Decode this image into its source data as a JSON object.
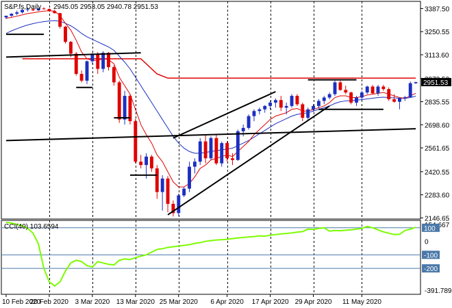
{
  "chart_data": [
    {
      "type": "candlestick",
      "header": {
        "symbol": "S&P.fs,Daily",
        "ohlc": "2945.05 2953.05 2940.78 2951.53"
      },
      "current_price": 2951.53,
      "current_price_label": "2951.53",
      "ylim": [
        2140,
        3430
      ],
      "y_ticks": [
        3387.5,
        3250.55,
        3113.6,
        2972.5,
        2835.55,
        2698.6,
        2561.65,
        2420.55,
        2283.6,
        2146.65
      ],
      "y_tick_labels": [
        "3387.50",
        "3250.55",
        "3113.60",
        "2972.50",
        "2835.55",
        "2698.60",
        "2561.65",
        "2420.55",
        "2283.60",
        "2146.65"
      ],
      "colors": {
        "up": "#1c2fc0",
        "down": "#e00000",
        "ma_fast": "#e00000",
        "ma_slow": "#1c2fc0",
        "trend": "#000000",
        "resistance": "#e00000"
      },
      "candles": [
        {
          "o": 3335,
          "h": 3345,
          "l": 3325,
          "c": 3345
        },
        {
          "o": 3345,
          "h": 3360,
          "l": 3338,
          "c": 3357
        },
        {
          "o": 3357,
          "h": 3375,
          "l": 3348,
          "c": 3365
        },
        {
          "o": 3365,
          "h": 3385,
          "l": 3358,
          "c": 3380
        },
        {
          "o": 3380,
          "h": 3393,
          "l": 3370,
          "c": 3383
        },
        {
          "o": 3383,
          "h": 3390,
          "l": 3372,
          "c": 3377
        },
        {
          "o": 3377,
          "h": 3392,
          "l": 3374,
          "c": 3388
        },
        {
          "o": 3388,
          "h": 3395,
          "l": 3381,
          "c": 3385
        },
        {
          "o": 3385,
          "h": 3388,
          "l": 3370,
          "c": 3372
        },
        {
          "o": 3372,
          "h": 3381,
          "l": 3358,
          "c": 3360
        },
        {
          "o": 3360,
          "h": 3362,
          "l": 3270,
          "c": 3280
        },
        {
          "o": 3280,
          "h": 3285,
          "l": 3180,
          "c": 3190
        },
        {
          "o": 3190,
          "h": 3195,
          "l": 3100,
          "c": 3120
        },
        {
          "o": 3120,
          "h": 3130,
          "l": 2990,
          "c": 3000
        },
        {
          "o": 3000,
          "h": 3020,
          "l": 2950,
          "c": 2960
        },
        {
          "o": 2960,
          "h": 3080,
          "l": 2940,
          "c": 3075
        },
        {
          "o": 3075,
          "h": 3125,
          "l": 3060,
          "c": 3115
        },
        {
          "o": 3115,
          "h": 3130,
          "l": 3000,
          "c": 3030
        },
        {
          "o": 3030,
          "h": 3135,
          "l": 3010,
          "c": 3125
        },
        {
          "o": 3125,
          "h": 3130,
          "l": 3020,
          "c": 3040
        },
        {
          "o": 3040,
          "h": 3050,
          "l": 2930,
          "c": 2950
        },
        {
          "o": 2950,
          "h": 2960,
          "l": 2710,
          "c": 2730
        },
        {
          "o": 2730,
          "h": 2900,
          "l": 2700,
          "c": 2870
        },
        {
          "o": 2870,
          "h": 2880,
          "l": 2700,
          "c": 2720
        },
        {
          "o": 2720,
          "h": 2735,
          "l": 2470,
          "c": 2480
        },
        {
          "o": 2480,
          "h": 2520,
          "l": 2440,
          "c": 2460
        },
        {
          "o": 2460,
          "h": 2530,
          "l": 2380,
          "c": 2510
        },
        {
          "o": 2510,
          "h": 2520,
          "l": 2420,
          "c": 2440
        },
        {
          "o": 2440,
          "h": 2460,
          "l": 2260,
          "c": 2300
        },
        {
          "o": 2300,
          "h": 2400,
          "l": 2190,
          "c": 2380
        },
        {
          "o": 2380,
          "h": 2395,
          "l": 2180,
          "c": 2230
        },
        {
          "o": 2230,
          "h": 2250,
          "l": 2155,
          "c": 2175
        },
        {
          "o": 2175,
          "h": 2290,
          "l": 2160,
          "c": 2280
        },
        {
          "o": 2280,
          "h": 2330,
          "l": 2270,
          "c": 2320
        },
        {
          "o": 2320,
          "h": 2480,
          "l": 2300,
          "c": 2450
        },
        {
          "o": 2450,
          "h": 2500,
          "l": 2410,
          "c": 2480
        },
        {
          "o": 2480,
          "h": 2620,
          "l": 2460,
          "c": 2600
        },
        {
          "o": 2600,
          "h": 2640,
          "l": 2470,
          "c": 2500
        },
        {
          "o": 2500,
          "h": 2630,
          "l": 2490,
          "c": 2620
        },
        {
          "o": 2620,
          "h": 2640,
          "l": 2460,
          "c": 2470
        },
        {
          "o": 2470,
          "h": 2600,
          "l": 2450,
          "c": 2590
        },
        {
          "o": 2590,
          "h": 2600,
          "l": 2480,
          "c": 2500
        },
        {
          "o": 2500,
          "h": 2530,
          "l": 2460,
          "c": 2490
        },
        {
          "o": 2490,
          "h": 2670,
          "l": 2485,
          "c": 2660
        },
        {
          "o": 2660,
          "h": 2700,
          "l": 2630,
          "c": 2680
        },
        {
          "o": 2680,
          "h": 2760,
          "l": 2670,
          "c": 2750
        },
        {
          "o": 2750,
          "h": 2790,
          "l": 2720,
          "c": 2780
        },
        {
          "o": 2780,
          "h": 2800,
          "l": 2760,
          "c": 2790
        },
        {
          "o": 2790,
          "h": 2815,
          "l": 2770,
          "c": 2810
        },
        {
          "o": 2810,
          "h": 2840,
          "l": 2790,
          "c": 2830
        },
        {
          "o": 2830,
          "h": 2855,
          "l": 2800,
          "c": 2845
        },
        {
          "o": 2845,
          "h": 2870,
          "l": 2780,
          "c": 2800
        },
        {
          "o": 2800,
          "h": 2830,
          "l": 2760,
          "c": 2810
        },
        {
          "o": 2810,
          "h": 2880,
          "l": 2800,
          "c": 2870
        },
        {
          "o": 2870,
          "h": 2880,
          "l": 2810,
          "c": 2820
        },
        {
          "o": 2820,
          "h": 2830,
          "l": 2720,
          "c": 2740
        },
        {
          "o": 2740,
          "h": 2800,
          "l": 2730,
          "c": 2790
        },
        {
          "o": 2790,
          "h": 2820,
          "l": 2775,
          "c": 2810
        },
        {
          "o": 2810,
          "h": 2850,
          "l": 2795,
          "c": 2840
        },
        {
          "o": 2840,
          "h": 2870,
          "l": 2820,
          "c": 2860
        },
        {
          "o": 2860,
          "h": 2890,
          "l": 2850,
          "c": 2880
        },
        {
          "o": 2880,
          "h": 2960,
          "l": 2870,
          "c": 2950
        },
        {
          "o": 2950,
          "h": 2960,
          "l": 2900,
          "c": 2905
        },
        {
          "o": 2905,
          "h": 2930,
          "l": 2880,
          "c": 2890
        },
        {
          "o": 2890,
          "h": 2895,
          "l": 2820,
          "c": 2830
        },
        {
          "o": 2830,
          "h": 2870,
          "l": 2810,
          "c": 2860
        },
        {
          "o": 2860,
          "h": 2900,
          "l": 2850,
          "c": 2890
        },
        {
          "o": 2890,
          "h": 2930,
          "l": 2880,
          "c": 2925
        },
        {
          "o": 2925,
          "h": 2935,
          "l": 2880,
          "c": 2885
        },
        {
          "o": 2885,
          "h": 2935,
          "l": 2870,
          "c": 2925
        },
        {
          "o": 2925,
          "h": 2935,
          "l": 2900,
          "c": 2910
        },
        {
          "o": 2910,
          "h": 2920,
          "l": 2840,
          "c": 2850
        },
        {
          "o": 2850,
          "h": 2880,
          "l": 2830,
          "c": 2835
        },
        {
          "o": 2835,
          "h": 2860,
          "l": 2790,
          "c": 2855
        },
        {
          "o": 2855,
          "h": 2870,
          "l": 2840,
          "c": 2862
        },
        {
          "o": 2862,
          "h": 2955,
          "l": 2860,
          "c": 2945
        },
        {
          "o": 2945,
          "h": 2953.05,
          "l": 2940.78,
          "c": 2951.53
        }
      ],
      "ma_fast": [
        3330,
        3335,
        3342,
        3350,
        3358,
        3362,
        3368,
        3372,
        3374,
        3372,
        3345,
        3300,
        3260,
        3200,
        3130,
        3090,
        3080,
        3080,
        3090,
        3085,
        3060,
        2980,
        2930,
        2880,
        2790,
        2700,
        2640,
        2590,
        2520,
        2480,
        2420,
        2360,
        2330,
        2330,
        2350,
        2390,
        2440,
        2460,
        2490,
        2500,
        2510,
        2520,
        2510,
        2540,
        2570,
        2600,
        2640,
        2670,
        2700,
        2730,
        2750,
        2760,
        2770,
        2790,
        2795,
        2780,
        2780,
        2790,
        2800,
        2810,
        2830,
        2860,
        2870,
        2870,
        2860,
        2860,
        2865,
        2875,
        2880,
        2885,
        2890,
        2880,
        2870,
        2860,
        2855,
        2870,
        2885
      ],
      "ma_slow": [
        3240,
        3255,
        3268,
        3280,
        3290,
        3298,
        3305,
        3310,
        3314,
        3316,
        3312,
        3300,
        3285,
        3265,
        3240,
        3220,
        3205,
        3190,
        3175,
        3160,
        3140,
        3105,
        3070,
        3030,
        2980,
        2930,
        2880,
        2830,
        2780,
        2730,
        2680,
        2630,
        2590,
        2560,
        2540,
        2530,
        2530,
        2535,
        2540,
        2545,
        2550,
        2555,
        2560,
        2575,
        2590,
        2605,
        2625,
        2645,
        2665,
        2685,
        2705,
        2720,
        2735,
        2750,
        2760,
        2765,
        2770,
        2780,
        2790,
        2800,
        2810,
        2825,
        2835,
        2840,
        2842,
        2845,
        2848,
        2852,
        2856,
        2860,
        2862,
        2860,
        2858,
        2856,
        2855,
        2860,
        2868
      ],
      "trendlines": [
        {
          "x1": 0,
          "y1": 3235,
          "x2": 7,
          "y2": 3235
        },
        {
          "x1": 0,
          "y1": 3100,
          "x2": 25,
          "y2": 3125
        },
        {
          "x1": 13,
          "y1": 2920,
          "x2": 16,
          "y2": 2920
        },
        {
          "x1": 20,
          "y1": 2740,
          "x2": 23,
          "y2": 2740
        },
        {
          "x1": 23,
          "y1": 2400,
          "x2": 28,
          "y2": 2400
        },
        {
          "x1": 0,
          "y1": 2605,
          "x2": 76,
          "y2": 2675
        },
        {
          "x1": 30,
          "y1": 2165,
          "x2": 60,
          "y2": 2810
        },
        {
          "x1": 31,
          "y1": 2620,
          "x2": 50,
          "y2": 2895
        },
        {
          "x1": 56,
          "y1": 2965,
          "x2": 65,
          "y2": 2965
        },
        {
          "x1": 58,
          "y1": 2790,
          "x2": 70,
          "y2": 2790
        }
      ],
      "resistance": [
        {
          "x": 3,
          "y": 3090
        },
        {
          "x": 25,
          "y": 3090
        },
        {
          "x": 28,
          "y": 3000
        },
        {
          "x": 30,
          "y": 2975
        },
        {
          "x": 76,
          "y": 2975
        }
      ],
      "x_labels": [
        {
          "i": 0,
          "label": "10 Feb 2020"
        },
        {
          "i": 8,
          "label": "20 Feb 2020"
        },
        {
          "i": 16,
          "label": "3 Mar 2020"
        },
        {
          "i": 24,
          "label": "13 Mar 2020"
        },
        {
          "i": 32,
          "label": "25 Mar 2020"
        },
        {
          "i": 41,
          "label": "6 Apr 2020"
        },
        {
          "i": 49,
          "label": "17 Apr 2020"
        },
        {
          "i": 57,
          "label": "29 Apr 2020"
        },
        {
          "i": 66,
          "label": "11 May 2020"
        }
      ],
      "vgrid_idx": [
        8,
        16,
        24,
        32,
        41,
        49,
        57,
        66
      ]
    },
    {
      "type": "line",
      "header": "CCI(40) 103.6594",
      "ylim": [
        -391.789,
        154.667
      ],
      "y_ticks": [
        100,
        0,
        -100,
        -200
      ],
      "y_tick_labels": [
        "100",
        "0",
        "-100",
        "-200"
      ],
      "top_label": "154.667",
      "bottom_label": "-391.789",
      "level_lines": [
        100,
        -100,
        -200
      ],
      "color": "#7cfc00",
      "values": [
        140,
        135,
        125,
        115,
        95,
        60,
        -20,
        -200,
        -300,
        -330,
        -300,
        -220,
        -160,
        -140,
        -150,
        -180,
        -190,
        -150,
        -160,
        -170,
        -175,
        -140,
        -130,
        -135,
        -120,
        -110,
        -100,
        -80,
        -60,
        -55,
        -45,
        -40,
        -35,
        -30,
        -25,
        -15,
        -10,
        0,
        5,
        10,
        12,
        15,
        20,
        25,
        28,
        32,
        35,
        40,
        38,
        45,
        50,
        55,
        58,
        62,
        68,
        72,
        90,
        88,
        95,
        100,
        75,
        80,
        78,
        82,
        85,
        90,
        95,
        110,
        100,
        85,
        70,
        60,
        50,
        52,
        80,
        90,
        104
      ]
    }
  ]
}
